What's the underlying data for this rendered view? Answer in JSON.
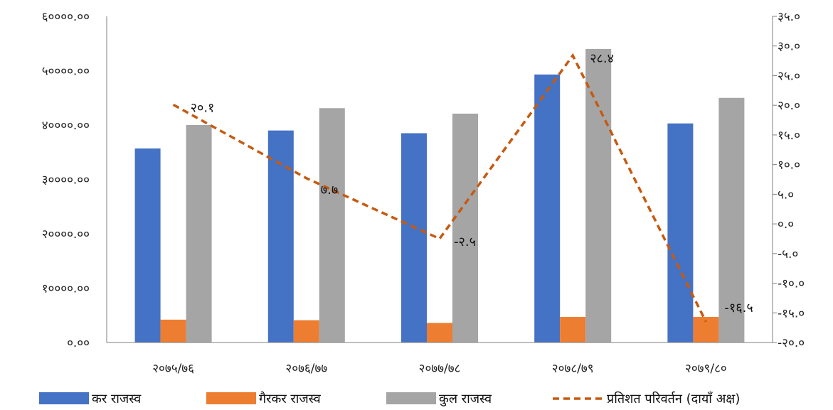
{
  "chart_data": {
    "type": "bar",
    "categories": [
      "२०७५/७६",
      "२०७६/७७",
      "२०७७/७८",
      "२०७८/७९",
      "२०७९/८०"
    ],
    "series": [
      {
        "name": "कर राजस्व",
        "type": "bar",
        "axis": "left",
        "color": "#4472C4",
        "values": [
          35700,
          39000,
          38500,
          49300,
          40300
        ]
      },
      {
        "name": "गैरकर राजस्व",
        "type": "bar",
        "axis": "left",
        "color": "#ED7D31",
        "values": [
          4200,
          4100,
          3600,
          4700,
          4700
        ]
      },
      {
        "name": "कुल राजस्व",
        "type": "bar",
        "axis": "left",
        "color": "#A5A5A5",
        "values": [
          40000,
          43100,
          42100,
          54000,
          45000
        ]
      },
      {
        "name": "प्रतिशत परिवर्तन (दायाँ अक्ष)",
        "type": "line",
        "axis": "right",
        "color": "#C55A11",
        "values": [
          20.1,
          7.7,
          -2.5,
          28.4,
          -16.5
        ],
        "value_labels": [
          "२०.१",
          "७.७",
          "-२.५",
          "२८.४",
          "-१६.५"
        ]
      }
    ],
    "left_axis": {
      "ylim": [
        0,
        60000
      ],
      "tick_values": [
        0,
        10000,
        20000,
        30000,
        40000,
        50000,
        60000
      ],
      "tick_labels": [
        "०.००",
        "१००००.००",
        "२००००.००",
        "३००००.००",
        "४००००.००",
        "५००००.००",
        "६००००.००"
      ]
    },
    "right_axis": {
      "ylim": [
        -20,
        35
      ],
      "tick_values": [
        -20,
        -15,
        -10,
        -5,
        0,
        5,
        10,
        15,
        20,
        25,
        30,
        35
      ],
      "tick_labels": [
        "-२०.०",
        "-१५.०",
        "-१०.०",
        "-५.०",
        "०.०",
        "५.०",
        "१०.०",
        "१५.०",
        "२०.०",
        "२५.०",
        "३०.०",
        "३५.०"
      ]
    },
    "grid": false,
    "legend_position": "bottom"
  }
}
